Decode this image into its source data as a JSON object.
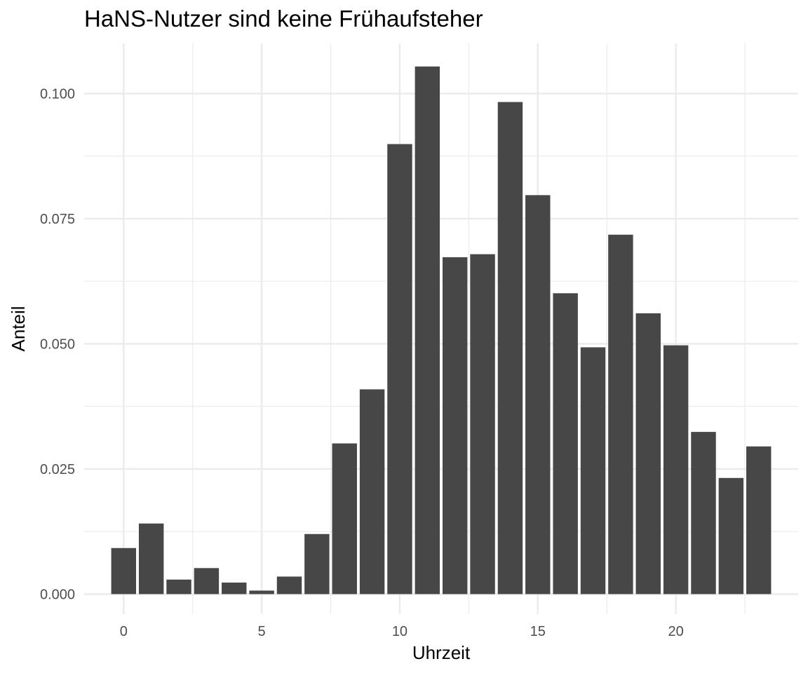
{
  "chart_data": {
    "type": "bar",
    "title": "HaNS-Nutzer sind keine Frühaufsteher",
    "xlabel": "Uhrzeit",
    "ylabel": "Anteil",
    "x": [
      0,
      1,
      2,
      3,
      4,
      5,
      6,
      7,
      8,
      9,
      10,
      11,
      12,
      13,
      14,
      15,
      16,
      17,
      18,
      19,
      20,
      21,
      22,
      23
    ],
    "values": [
      0.0092,
      0.0141,
      0.0029,
      0.0052,
      0.0023,
      0.0007,
      0.0035,
      0.012,
      0.0301,
      0.0409,
      0.0899,
      0.1054,
      0.0673,
      0.0679,
      0.0983,
      0.0797,
      0.0601,
      0.0493,
      0.0718,
      0.0561,
      0.0497,
      0.0324,
      0.0232,
      0.0295
    ],
    "xlim": [
      -1.43,
      24.43
    ],
    "ylim": [
      -0.004,
      0.11
    ],
    "x_ticks": [
      0,
      5,
      10,
      15,
      20
    ],
    "x_tick_labels": [
      "0",
      "5",
      "10",
      "15",
      "20"
    ],
    "y_ticks": [
      0,
      0.025,
      0.05,
      0.075,
      0.1
    ],
    "y_tick_labels": [
      "0.000",
      "0.025",
      "0.050",
      "0.075",
      "0.100"
    ],
    "grid": true,
    "legend": "none",
    "bar_color": "#474747",
    "grid_color": "#ebebeb"
  }
}
